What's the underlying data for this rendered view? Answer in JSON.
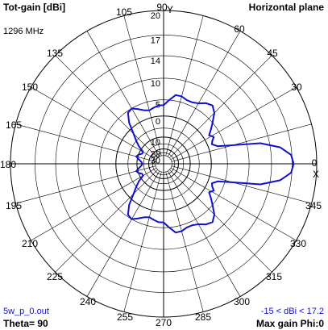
{
  "header": {
    "title": "Tot-gain [dBi]",
    "plane": "Horizontal plane",
    "frequency": "1296 MHz"
  },
  "footer": {
    "filename": "5w_p_0.out",
    "theta": "Theta= 90",
    "gain_range": "-15 < dBi < 17.2",
    "max_gain": "Max gain Phi:0"
  },
  "colors": {
    "pattern": "#1010d0",
    "grid": "#000000",
    "background": "#ffffff"
  },
  "chart_data": {
    "type": "line",
    "coordinate_system": "polar",
    "title": "Tot-gain [dBi]",
    "subtitle": "Horizontal plane",
    "angle_ticks": [
      0,
      15,
      30,
      45,
      60,
      75,
      90,
      105,
      120,
      135,
      150,
      165,
      180,
      195,
      210,
      225,
      240,
      255,
      270,
      285,
      300,
      315,
      330,
      345
    ],
    "angle_tick_labels": [
      "0",
      "",
      "30",
      "45",
      "60",
      "",
      "90",
      "105",
      "",
      "135",
      "150",
      "165",
      "180",
      "195",
      "210",
      "225",
      "240",
      "255",
      "270",
      "285",
      "300",
      "315",
      "330",
      "345"
    ],
    "radial_ticks": [
      20,
      17,
      14,
      10,
      5,
      0,
      -10,
      -20,
      -30
    ],
    "radial_tick_labels": [
      "20",
      "17",
      "14",
      "10",
      "5",
      "0",
      "10",
      "20",
      "30"
    ],
    "axis_letters": {
      "y": "Y",
      "x": "X"
    },
    "series": [
      {
        "x": [
          0,
          4,
          8,
          12,
          15,
          18,
          22,
          25,
          28,
          32,
          36,
          40,
          45,
          50,
          55,
          60,
          65,
          70,
          75,
          80,
          85,
          90,
          95,
          100,
          105,
          110,
          115,
          120,
          125,
          130,
          135,
          140,
          145,
          150,
          155,
          160,
          165,
          170,
          175,
          180,
          185,
          190,
          195,
          200,
          205,
          210,
          215,
          220,
          225,
          230,
          235,
          240,
          245,
          250,
          255,
          260,
          265,
          270,
          275,
          280,
          285,
          290,
          295,
          300,
          305,
          310,
          315,
          320,
          324,
          328,
          332,
          335,
          338,
          342,
          345,
          348,
          352,
          356,
          360
        ],
        "y": [
          17.2,
          16.9,
          15.5,
          12.5,
          7.0,
          3.0,
          1.5,
          2.0,
          3.0,
          2.0,
          3.5,
          5.0,
          7.0,
          8.0,
          7.5,
          6.5,
          6.0,
          6.0,
          6.5,
          6.5,
          5.0,
          3.5,
          3.5,
          3.0,
          2.5,
          3.0,
          4.0,
          5.0,
          4.5,
          2.0,
          -2.0,
          -5.0,
          -8.0,
          -12.0,
          -12.0,
          -10.0,
          -9.0,
          -11.0,
          -13.0,
          -14.0,
          -13.0,
          -11.0,
          -9.0,
          -10.0,
          -12.0,
          -12.0,
          -8.0,
          -5.0,
          -2.0,
          2.0,
          4.5,
          5.0,
          4.0,
          3.0,
          2.5,
          3.0,
          3.5,
          3.5,
          5.0,
          6.5,
          6.5,
          6.0,
          6.0,
          6.5,
          7.5,
          8.0,
          7.0,
          5.0,
          3.5,
          2.0,
          3.0,
          2.0,
          1.5,
          3.0,
          7.0,
          12.5,
          15.5,
          16.9,
          17.2
        ]
      }
    ]
  }
}
